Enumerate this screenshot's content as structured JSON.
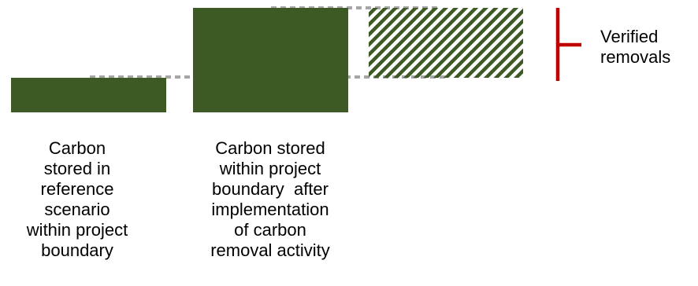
{
  "labels": {
    "reference_scenario": [
      "Carbon",
      "stored in",
      "reference",
      "scenario",
      "within project",
      "boundary"
    ],
    "project_scenario": [
      "Carbon stored",
      "within project",
      "boundary  after",
      "implementation",
      "of carbon",
      "removal activity"
    ],
    "verified_removals": [
      "Verified",
      "removals"
    ]
  },
  "colors": {
    "bar_fill": "#3d5a25",
    "hatch": "#3d5a25",
    "dotted_line": "#a6a6a6",
    "bracket": "#c00000",
    "text": "#000000"
  },
  "icons": {
    "bracket": "red-bracket-icon"
  }
}
